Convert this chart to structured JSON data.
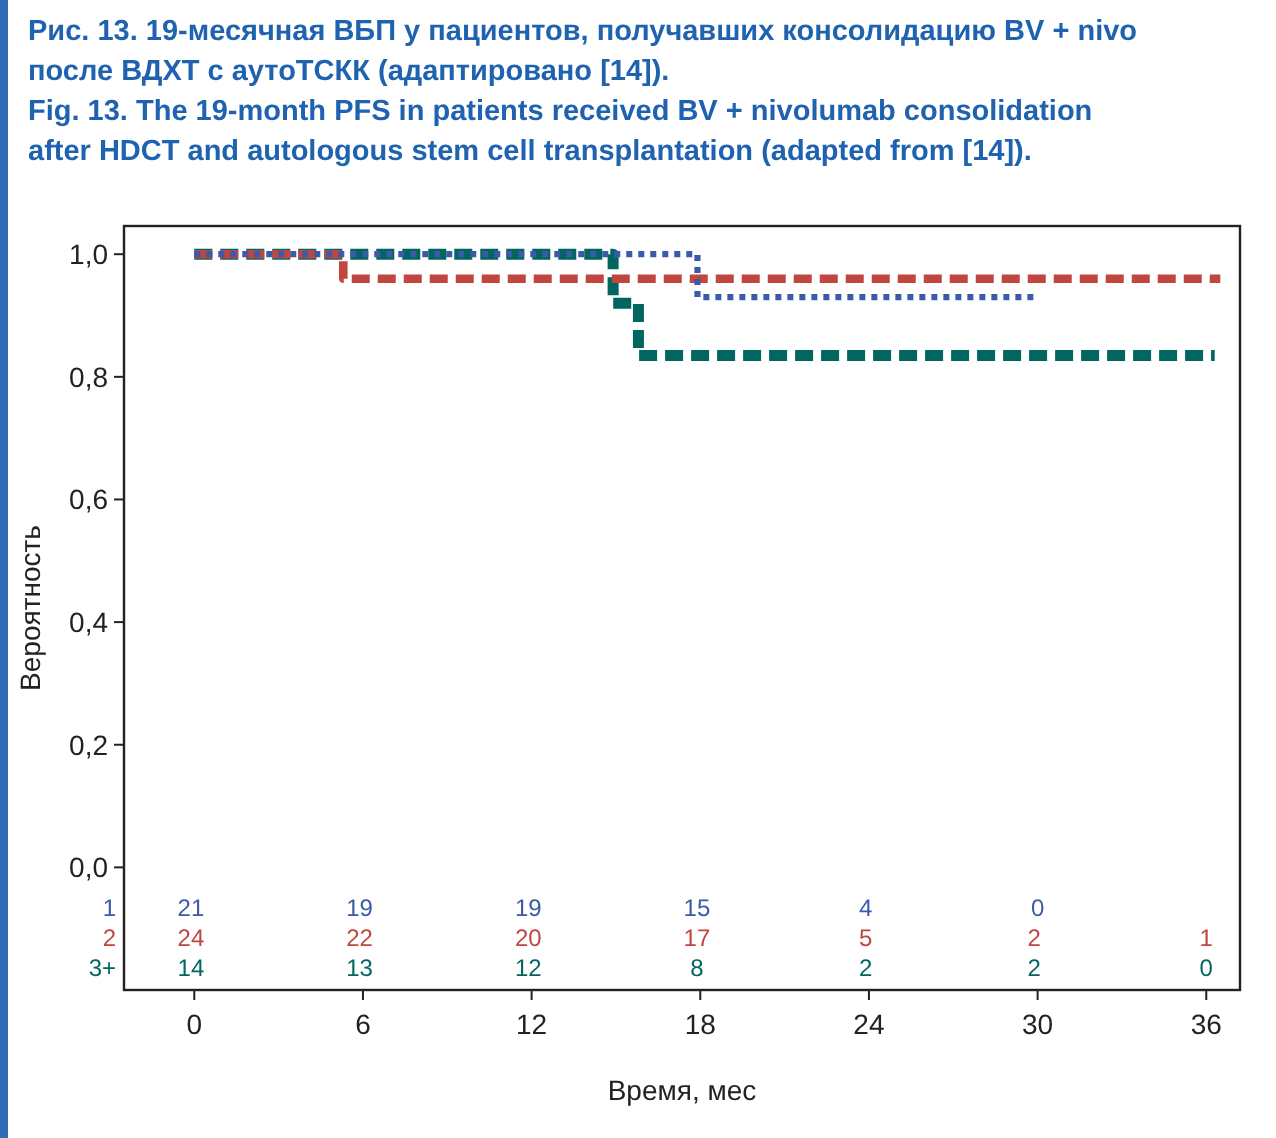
{
  "chart_data": {
    "type": "step",
    "title": "Рис. 13. 19-месячная ВБП у пациентов, получавших консолидацию BV + nivo после ВДХТ с аутоТСКК (адаптировано [14]).",
    "subtitle": "Fig. 13. The 19-month PFS in patients received BV + nivolumab consolidation after HDCT and autologous stem cell transplantation (adapted from [14]).",
    "xlabel": "Время, мес",
    "ylabel": "Вероятность",
    "xlim": [
      -2.5,
      37.2
    ],
    "xticks": [
      0,
      6,
      12,
      18,
      24,
      30,
      36
    ],
    "ylim": [
      -0.2,
      1.046
    ],
    "yticks": [
      {
        "value": 0,
        "label": "0,0"
      },
      {
        "value": 0.2,
        "label": "0,2"
      },
      {
        "value": 0.4,
        "label": "0,4"
      },
      {
        "value": 0.6,
        "label": "0,6"
      },
      {
        "value": 0.8,
        "label": "0,8"
      },
      {
        "value": 1,
        "label": "1,0"
      }
    ],
    "grid": false,
    "series": [
      {
        "name": "1",
        "color": "#3b5ba8",
        "line_style": "dotted",
        "x": [
          0,
          17.9,
          29.9
        ],
        "values": [
          1,
          0.93,
          0.93
        ]
      },
      {
        "name": "2",
        "color": "#c0463f",
        "line_style": "dashed",
        "x": [
          0,
          5.3,
          36.5
        ],
        "values": [
          1,
          0.96,
          0.96
        ]
      },
      {
        "name": "3+",
        "color": "#00665f",
        "line_style": "dashed",
        "x": [
          0,
          14.9,
          15.8,
          36.3
        ],
        "values": [
          1,
          0.92,
          0.835,
          0.835
        ]
      }
    ],
    "annotations": [
      "21 19 19 15 4 0",
      "24 22 20 17 5 2 1",
      "14 13 12 8 2 2 0"
    ]
  }
}
